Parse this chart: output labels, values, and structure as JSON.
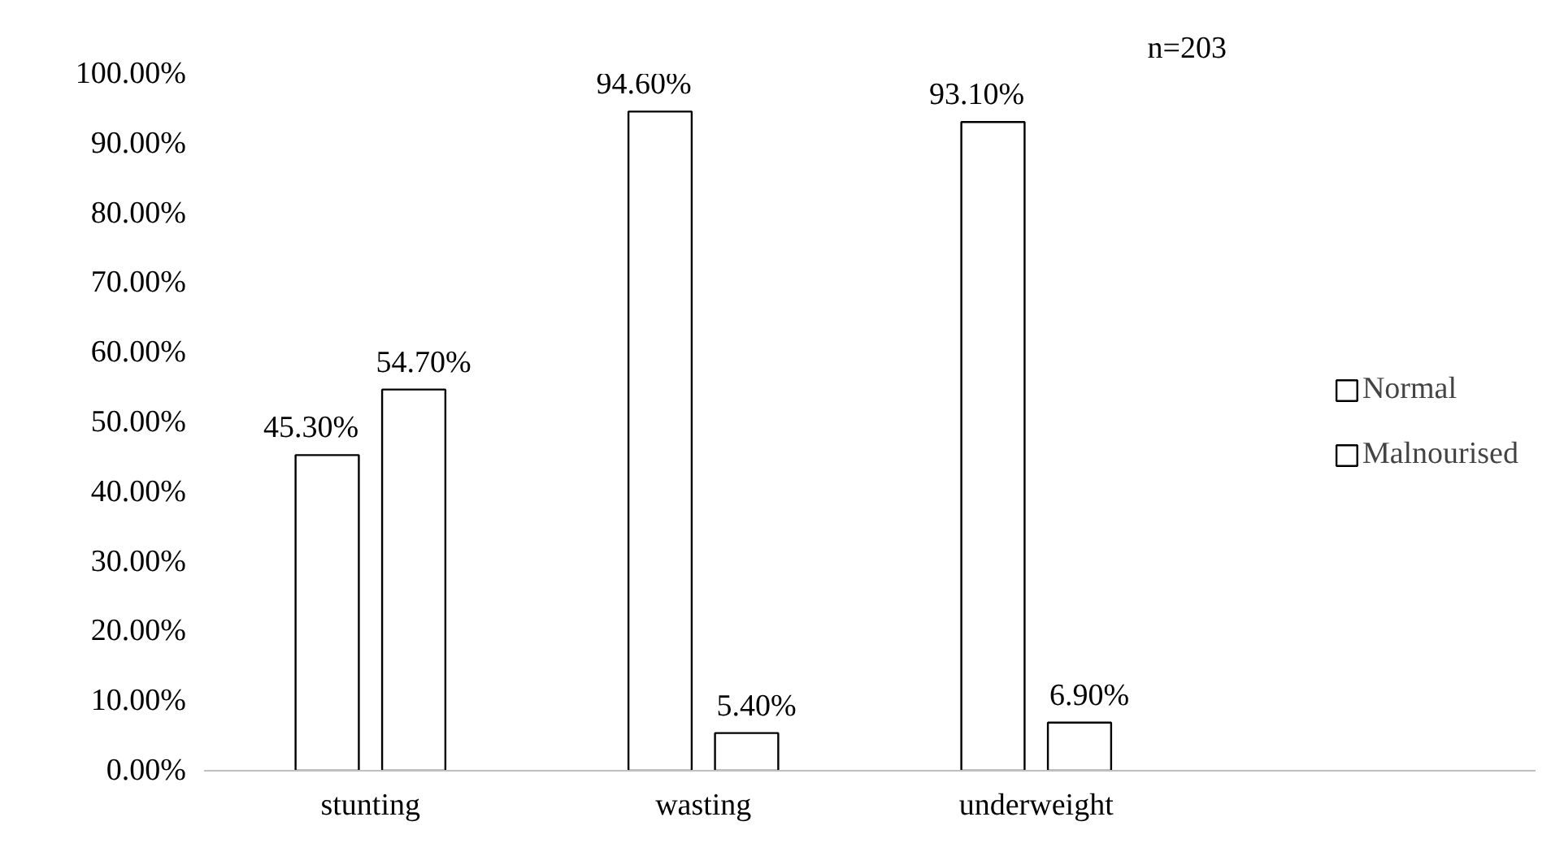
{
  "chart_data": {
    "type": "bar",
    "categories": [
      "stunting",
      "wasting",
      "underweight",
      null
    ],
    "series": [
      {
        "name": "Normal",
        "color": "#ffffff",
        "values": [
          45.3,
          94.6,
          93.1,
          null
        ],
        "value_labels": [
          "45.30%",
          "94.60%",
          "93.10%",
          null
        ]
      },
      {
        "name": "Malnourised",
        "color": "#ffffff",
        "values": [
          54.7,
          5.4,
          6.9,
          null
        ],
        "value_labels": [
          "54.70%",
          "5.40%",
          "6.90%",
          null
        ]
      }
    ],
    "ylim": [
      0,
      100
    ],
    "yticks": [
      {
        "value": 0,
        "label": "0.00%"
      },
      {
        "value": 10,
        "label": "10.00%"
      },
      {
        "value": 20,
        "label": "20.00%"
      },
      {
        "value": 30,
        "label": "30.00%"
      },
      {
        "value": 40,
        "label": "40.00%"
      },
      {
        "value": 50,
        "label": "50.00%"
      },
      {
        "value": 60,
        "label": "60.00%"
      },
      {
        "value": 70,
        "label": "70.00%"
      },
      {
        "value": 80,
        "label": "80.00%"
      },
      {
        "value": 90,
        "label": "90.00%"
      },
      {
        "value": 100,
        "label": "100.00%"
      }
    ],
    "grid": false,
    "legend": "right",
    "annotations": [
      "n=203"
    ]
  }
}
